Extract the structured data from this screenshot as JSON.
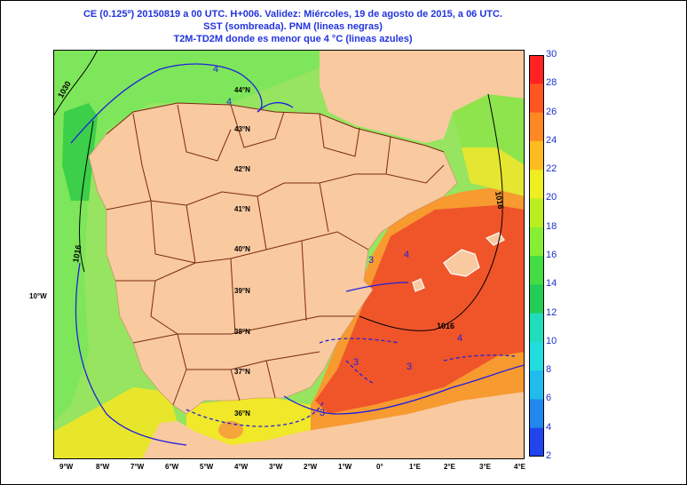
{
  "header": {
    "line1": "CE (0.125º) 20150819 a 00 UTC.  H+006. Validez: Miércoles, 19 de agosto de 2015,  a  06 UTC.",
    "line2": "SST (sombreada).    PNM (lineas negras)",
    "line3": "T2M-TD2M donde es menor que 4 °C (lineas azules)"
  },
  "map": {
    "lon_labels": [
      "9°W",
      "8°W",
      "7°W",
      "6°W",
      "5°W",
      "4°W",
      "3°W",
      "2°W",
      "1°W",
      "0°",
      "1°E",
      "2°E",
      "3°E",
      "4°E"
    ],
    "lat_labels": [
      "44°N",
      "43°N",
      "42°N",
      "41°N",
      "40°N",
      "39°N",
      "38°N",
      "37°N",
      "36°N"
    ],
    "side_label": "10°W",
    "isobar_labels": [
      "1030",
      "1016",
      "1016",
      "1016"
    ],
    "dewdep_labels": [
      "4",
      "4",
      "4",
      "4",
      "3",
      "3",
      "3",
      "3"
    ],
    "colors": {
      "land": "#f9c9a0",
      "border": "#7a2a10",
      "isobar": "#000000",
      "dewdep": "#2020dd"
    }
  },
  "colorbar": {
    "ticks": [
      "30",
      "28",
      "26",
      "24",
      "22",
      "20",
      "18",
      "16",
      "14",
      "12",
      "10",
      "8",
      "6",
      "4",
      "2"
    ],
    "colors": [
      "#ff2222",
      "#ff5522",
      "#ff8822",
      "#ffbb22",
      "#eeee22",
      "#bbee22",
      "#88ee33",
      "#44dd44",
      "#22cc55",
      "#22ddbb",
      "#22dddd",
      "#22bbee",
      "#2288ee",
      "#2244ee",
      "#1111dd"
    ]
  }
}
